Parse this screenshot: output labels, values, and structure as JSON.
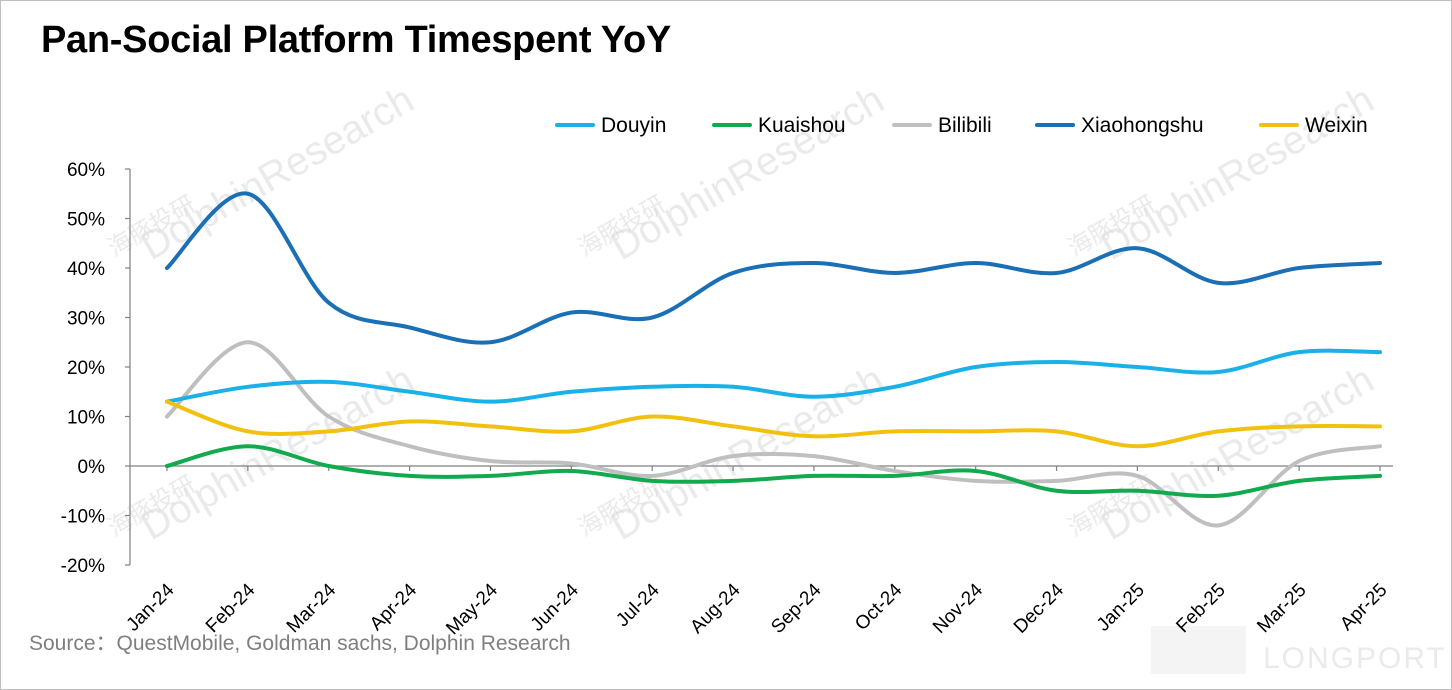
{
  "header": {
    "title": "Pan-Social Platform Timespent YoY"
  },
  "footer": {
    "source": "Source：QuestMobile, Goldman sachs, Dolphin Research"
  },
  "watermarks": [
    "DolphinResearch",
    "海豚投研",
    "LONGPORT"
  ],
  "chart_data": {
    "type": "line",
    "title": "Pan-Social Platform Timespent YoY",
    "xlabel": "",
    "ylabel": "",
    "x": [
      "Jan-24",
      "Feb-24",
      "Mar-24",
      "Apr-24",
      "May-24",
      "Jun-24",
      "Jul-24",
      "Aug-24",
      "Sep-24",
      "Oct-24",
      "Nov-24",
      "Dec-24",
      "Jan-25",
      "Feb-25",
      "Mar-25",
      "Apr-25"
    ],
    "ylim": [
      -20,
      60
    ],
    "yticks": [
      -20,
      -10,
      0,
      10,
      20,
      30,
      40,
      50,
      60
    ],
    "ytick_labels": [
      "-20%",
      "-10%",
      "0%",
      "10%",
      "20%",
      "30%",
      "40%",
      "50%",
      "60%"
    ],
    "unit": "%",
    "legend_position": "top-right",
    "grid": false,
    "series": [
      {
        "name": "Douyin",
        "color": "#1ab0e8",
        "values": [
          13,
          16,
          17,
          15,
          13,
          15,
          16,
          16,
          14,
          16,
          20,
          21,
          20,
          19,
          23,
          23
        ]
      },
      {
        "name": "Kuaishou",
        "color": "#13a94e",
        "values": [
          0,
          4,
          0,
          -2,
          -2,
          -1,
          -3,
          -3,
          -2,
          -2,
          -1,
          -5,
          -5,
          -6,
          -3,
          -2
        ]
      },
      {
        "name": "Bilibili",
        "color": "#bfbfbf",
        "values": [
          10,
          25,
          10,
          4,
          1,
          0.5,
          -2,
          2,
          2,
          -1,
          -3,
          -3,
          -2,
          -12,
          1,
          4
        ]
      },
      {
        "name": "Xiaohongshu",
        "color": "#1a6fb5",
        "values": [
          40,
          55,
          33,
          28,
          25,
          31,
          30,
          39,
          41,
          39,
          41,
          39,
          44,
          37,
          40,
          41
        ]
      },
      {
        "name": "Weixin",
        "color": "#f2c10f",
        "values": [
          13,
          7,
          7,
          9,
          8,
          7,
          10,
          8,
          6,
          7,
          7,
          7,
          4,
          7,
          8,
          8
        ]
      }
    ]
  }
}
